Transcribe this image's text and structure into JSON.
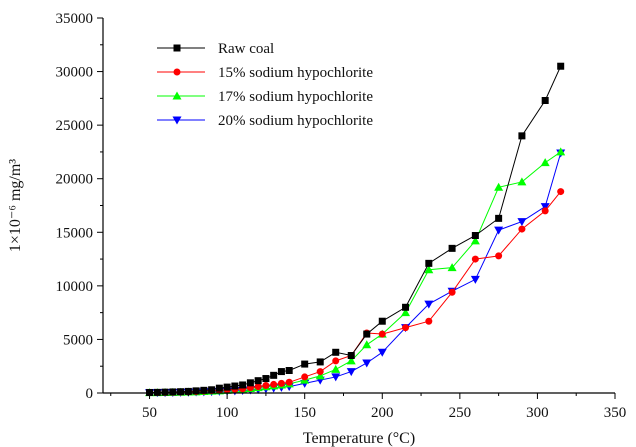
{
  "chart_data": {
    "type": "line",
    "xlabel": "Temperature (°C)",
    "ylabel": "1×10⁻⁶ mg/m³",
    "xlim": [
      20,
      350
    ],
    "ylim": [
      0,
      35000
    ],
    "xticks": [
      50,
      100,
      150,
      200,
      250,
      300,
      350
    ],
    "yticks": [
      0,
      5000,
      10000,
      15000,
      20000,
      25000,
      30000,
      35000
    ],
    "legend_position": "top-left",
    "grid": false,
    "series": [
      {
        "name": "Raw coal",
        "color": "#000000",
        "marker": "square",
        "x": [
          50,
          55,
          60,
          65,
          70,
          75,
          80,
          85,
          90,
          95,
          100,
          105,
          110,
          115,
          120,
          125,
          130,
          135,
          140,
          150,
          160,
          170,
          180,
          190,
          200,
          215,
          230,
          245,
          260,
          275,
          290,
          305,
          315
        ],
        "y": [
          50,
          60,
          80,
          100,
          120,
          150,
          200,
          250,
          300,
          450,
          550,
          650,
          750,
          950,
          1150,
          1350,
          1650,
          2000,
          2100,
          2700,
          2900,
          3800,
          3500,
          5500,
          6700,
          8000,
          12100,
          13500,
          14700,
          16300,
          24000,
          27300,
          30500
        ]
      },
      {
        "name": "15% sodium hypochlorite",
        "color": "#ff0000",
        "marker": "circle",
        "x": [
          50,
          55,
          60,
          65,
          70,
          75,
          80,
          85,
          90,
          95,
          100,
          105,
          110,
          115,
          120,
          125,
          130,
          135,
          140,
          150,
          160,
          170,
          180,
          190,
          200,
          215,
          230,
          245,
          260,
          275,
          290,
          305,
          315
        ],
        "y": [
          40,
          50,
          60,
          70,
          90,
          110,
          140,
          180,
          220,
          260,
          300,
          350,
          400,
          500,
          600,
          700,
          800,
          900,
          1000,
          1500,
          2000,
          3000,
          3500,
          5600,
          5500,
          6100,
          6700,
          9400,
          12500,
          12800,
          15300,
          17000,
          18800
        ]
      },
      {
        "name": "17% sodium hypochlorite",
        "color": "#00ff00",
        "marker": "triangle-up",
        "x": [
          50,
          55,
          60,
          65,
          70,
          75,
          80,
          85,
          90,
          95,
          100,
          105,
          110,
          115,
          120,
          125,
          130,
          135,
          140,
          150,
          160,
          170,
          180,
          190,
          200,
          215,
          230,
          245,
          260,
          275,
          290,
          305,
          315
        ],
        "y": [
          30,
          40,
          50,
          60,
          70,
          90,
          110,
          140,
          170,
          200,
          250,
          300,
          350,
          420,
          500,
          580,
          660,
          750,
          850,
          1200,
          1600,
          2200,
          3000,
          4500,
          5500,
          7500,
          11500,
          11700,
          14200,
          19200,
          19700,
          21500,
          22500
        ]
      },
      {
        "name": "20% sodium hypochlorite",
        "color": "#0000ff",
        "marker": "triangle-down",
        "x": [
          50,
          55,
          60,
          65,
          70,
          75,
          80,
          85,
          90,
          95,
          100,
          105,
          110,
          115,
          120,
          125,
          130,
          135,
          140,
          150,
          160,
          170,
          180,
          190,
          200,
          215,
          230,
          245,
          260,
          275,
          290,
          305,
          315
        ],
        "y": [
          20,
          30,
          40,
          50,
          60,
          70,
          90,
          110,
          130,
          150,
          180,
          200,
          230,
          280,
          330,
          380,
          450,
          520,
          600,
          900,
          1200,
          1500,
          2000,
          2800,
          3800,
          6100,
          8300,
          9500,
          10600,
          15200,
          16000,
          17400,
          22400
        ]
      }
    ]
  }
}
